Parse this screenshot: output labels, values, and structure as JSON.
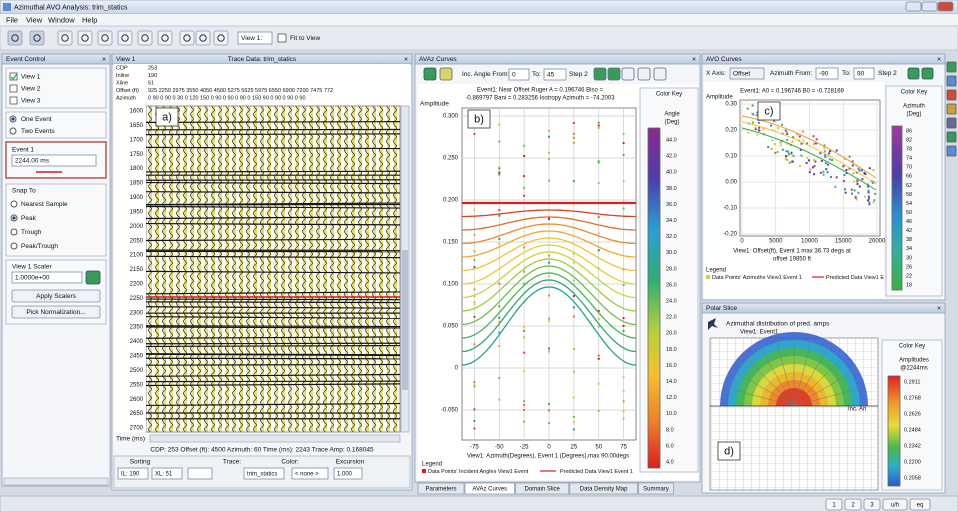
{
  "window": {
    "title": "Azimuthal AVO Analysis: trim_statics"
  },
  "menu": [
    "File",
    "View",
    "Window",
    "Help"
  ],
  "toolbar": {
    "view_select": "View 1:",
    "fit_to_view": "Fit to View"
  },
  "event_control": {
    "title": "Event Control",
    "views": [
      "View 1",
      "View 2",
      "View 3"
    ],
    "events": [
      "One Event",
      "Two Events"
    ],
    "event_label": "Event 1",
    "event_value": "2244.00 ms",
    "snap_title": "Snap To",
    "snap": [
      "Nearest Sample",
      "Peak",
      "Trough",
      "Peak/Trough"
    ],
    "scaler_label": "View 1 Scaler",
    "scaler_value": "1.0000e+00",
    "buttons": [
      "Apply Scalers",
      "Pick Normalization..."
    ]
  },
  "view1": {
    "title": "View 1",
    "trace_data": "Trace Data: trim_statics",
    "header_names": [
      "CDP",
      "Inline",
      "Xline",
      "Offset (ft)",
      "Azimuth"
    ],
    "header_values": [
      "253",
      "190",
      "51",
      "925  2250 2975 3550  4050 4500 5275 5625 5975 6550 6900 7200 7475 772",
      "0 90 0 90 0  30   0 120  150   0 90 0 90 0 90 0 150 90 0 90 0 90 0 90"
    ],
    "times": [
      "1600",
      "1650",
      "1700",
      "1750",
      "1800",
      "1850",
      "1900",
      "1950",
      "2000",
      "2050",
      "2100",
      "2150",
      "2200",
      "2250",
      "2300",
      "2350",
      "2400",
      "2450",
      "2500",
      "2550",
      "2600",
      "2650",
      "2700"
    ],
    "time_label": "Time (ms)",
    "status": "CDP: 253  Offset (ft): 4500  Azimuth: 60  Time (ms): 2243  Trace Amp: 0.168045",
    "sorting_label": "Sorting",
    "trace_label": "Trace:",
    "color_label": "Color:",
    "excursion_label": "Excursion",
    "sort1": "IL: 190",
    "sort2": "XL: 51",
    "trace_value": "trim_statics",
    "color_value": "< none >",
    "excursion_value": "1.000",
    "label": "a)"
  },
  "avaz": {
    "title": "AVAz Curves",
    "from_label": "Inc. Angle From:",
    "from_value": "0",
    "to_label": "To:",
    "to_value": "45",
    "step": "Step 2",
    "header_line1": "Event1: Near Offset Ruger A = 0.196746 Biso =",
    "header_line2": "-0.869797 Bani = 0.283256 Isotropy Azimuth = -74.2003",
    "y_label": "Amplitude",
    "yticks": [
      "0.300",
      "0.250",
      "0.200",
      "0.150",
      "0.100",
      "0.050",
      "0",
      "-0.050"
    ],
    "xticks": [
      "-75",
      "-50",
      "-25",
      "0",
      "25",
      "50",
      "75"
    ],
    "x_label": "View1: Azimuth(Degrees), Event 1 (Degrees),max 90.00degs",
    "key_title": "Color Key",
    "key_name": [
      "Angle",
      "(Deg)"
    ],
    "key_ticks": [
      "44.0",
      "42.0",
      "40.0",
      "38.0",
      "36.0",
      "34.0",
      "32.0",
      "30.0",
      "28.0",
      "26.0",
      "24.0",
      "22.0",
      "20.0",
      "18.0",
      "16.0",
      "14.0",
      "12.0",
      "10.0",
      "8.0",
      "6.0",
      "4.0"
    ],
    "legend_title": "Legend",
    "legend_items": [
      "Data Points' Incident Angles View1 Event",
      "Predicted Data View1 Event 1"
    ],
    "label": "b)",
    "tabs": [
      "Parameters",
      "AVAz Curves",
      "Domain Slice",
      "Data Density Map",
      "Summary"
    ]
  },
  "avo": {
    "title": "AVO Curves",
    "xaxis_label": "X Axis:",
    "xaxis_value": "Offset",
    "from_label": "Azimuth From:",
    "from_value": "-90",
    "to_label": "To:",
    "to_value": "90",
    "step": "Step 2",
    "header": "Event1: A0 = 0.196746 B0 = -0.728169",
    "y_label": "Amplitude",
    "yticks": [
      "0.30",
      "0.20",
      "0.10",
      "0.00",
      "-0.10",
      "-0.20"
    ],
    "xticks": [
      "0",
      "5000",
      "10000",
      "15000",
      "20000"
    ],
    "x_label": [
      "View1: Offset(ft), Event 1 max 36.73 degs at",
      "offset 19850 ft"
    ],
    "key_title": "Color Key",
    "key_name": [
      "Azimuth",
      "(Deg)"
    ],
    "key_ticks": [
      "86",
      "82",
      "78",
      "74",
      "70",
      "66",
      "62",
      "58",
      "54",
      "50",
      "46",
      "42",
      "38",
      "34",
      "30",
      "26",
      "22",
      "18"
    ],
    "legend_title": "Legend",
    "legend_items": [
      "Data Points' Azimuths View1 Event 1",
      "Predicted Data View1 E"
    ],
    "label": "c)"
  },
  "polar": {
    "title": "Polar Slice",
    "caption": "Azimuthal distribution of pred. amps",
    "subcaption": "View1: Event1",
    "axis_label": "Inc. An",
    "key_title": "Color Key",
    "key_name": [
      "Amplitudes",
      "@2244ms"
    ],
    "key_ticks": [
      "0.2911",
      "0.2768",
      "0.2626",
      "0.2484",
      "0.2342",
      "0.2200",
      "0.2058"
    ],
    "label": "d)"
  },
  "statusbar": [
    "1",
    "2",
    "3",
    "u/h",
    "eq"
  ]
}
